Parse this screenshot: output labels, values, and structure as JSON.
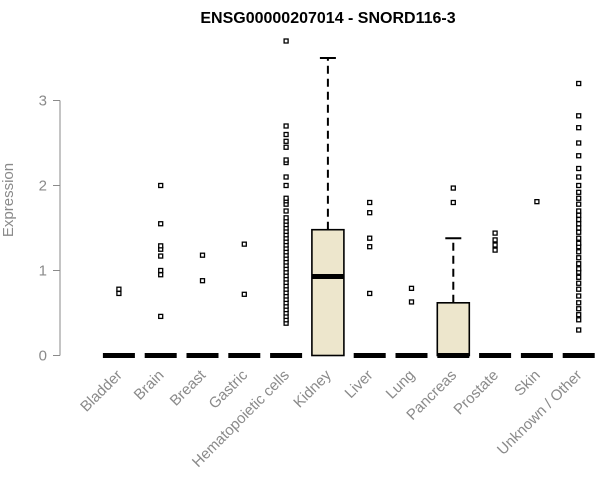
{
  "chart_data": {
    "type": "box",
    "title": "ENSG00000207014 - SNORD116-3",
    "xlabel": "",
    "ylabel": "Expression",
    "ylim": [
      0,
      3.7
    ],
    "yticks": [
      0,
      1,
      2,
      3
    ],
    "categories": [
      "Bladder",
      "Brain",
      "Breast",
      "Gastric",
      "Hematopoietic cells",
      "Kidney",
      "Liver",
      "Lung",
      "Pancreas",
      "Prostate",
      "Skin",
      "Unknown / Other"
    ],
    "box_fill": "#EDE6CC",
    "series": [
      {
        "name": "Bladder",
        "q1": 0,
        "median": 0,
        "q3": 0,
        "whisker_low": 0,
        "whisker_high": 0,
        "outliers": [
          0.73,
          0.78
        ]
      },
      {
        "name": "Brain",
        "q1": 0,
        "median": 0,
        "q3": 0,
        "whisker_low": 0,
        "whisker_high": 0,
        "outliers": [
          0.46,
          0.95,
          1.0,
          1.17,
          1.25,
          1.29,
          1.55,
          2.0
        ]
      },
      {
        "name": "Breast",
        "q1": 0,
        "median": 0,
        "q3": 0,
        "whisker_low": 0,
        "whisker_high": 0,
        "outliers": [
          0.88,
          1.18
        ]
      },
      {
        "name": "Gastric",
        "q1": 0,
        "median": 0,
        "q3": 0,
        "whisker_low": 0,
        "whisker_high": 0,
        "outliers": [
          0.72,
          1.31
        ]
      },
      {
        "name": "Hematopoietic cells",
        "q1": 0,
        "median": 0,
        "q3": 0,
        "whisker_low": 0,
        "whisker_high": 0,
        "outliers": [
          0.38,
          0.42,
          0.46,
          0.5,
          0.54,
          0.58,
          0.62,
          0.66,
          0.7,
          0.74,
          0.78,
          0.82,
          0.86,
          0.9,
          0.94,
          0.98,
          1.02,
          1.06,
          1.1,
          1.14,
          1.18,
          1.22,
          1.26,
          1.3,
          1.34,
          1.38,
          1.42,
          1.46,
          1.5,
          1.54,
          1.58,
          1.62,
          1.7,
          1.78,
          1.82,
          1.85,
          2.0,
          2.1,
          2.27,
          2.3,
          2.45,
          2.52,
          2.6,
          2.7,
          3.7
        ]
      },
      {
        "name": "Kidney",
        "q1": 0,
        "median": 0.93,
        "q3": 1.48,
        "whisker_low": 0,
        "whisker_high": 3.5,
        "outliers": []
      },
      {
        "name": "Liver",
        "q1": 0,
        "median": 0,
        "q3": 0,
        "whisker_low": 0,
        "whisker_high": 0,
        "outliers": [
          0.73,
          1.28,
          1.38,
          1.68,
          1.8
        ]
      },
      {
        "name": "Lung",
        "q1": 0,
        "median": 0,
        "q3": 0,
        "whisker_low": 0,
        "whisker_high": 0,
        "outliers": [
          0.63,
          0.79
        ]
      },
      {
        "name": "Pancreas",
        "q1": 0,
        "median": 0,
        "q3": 0.62,
        "whisker_low": 0,
        "whisker_high": 1.38,
        "outliers": [
          1.8,
          1.97
        ]
      },
      {
        "name": "Prostate",
        "q1": 0,
        "median": 0,
        "q3": 0,
        "whisker_low": 0,
        "whisker_high": 0,
        "outliers": [
          1.24,
          1.3,
          1.36,
          1.44
        ]
      },
      {
        "name": "Skin",
        "q1": 0,
        "median": 0,
        "q3": 0,
        "whisker_low": 0,
        "whisker_high": 0,
        "outliers": [
          1.81
        ]
      },
      {
        "name": "Unknown / Other",
        "q1": 0,
        "median": 0,
        "q3": 0,
        "whisker_low": 0,
        "whisker_high": 0,
        "outliers": [
          0.3,
          0.42,
          0.48,
          0.55,
          0.62,
          0.7,
          0.78,
          0.85,
          0.92,
          0.98,
          1.02,
          1.08,
          1.15,
          1.22,
          1.28,
          1.32,
          1.38,
          1.45,
          1.5,
          1.55,
          1.6,
          1.65,
          1.7,
          1.78,
          1.85,
          1.92,
          2.0,
          2.1,
          2.2,
          2.35,
          2.5,
          2.68,
          2.82,
          3.2
        ]
      }
    ]
  }
}
